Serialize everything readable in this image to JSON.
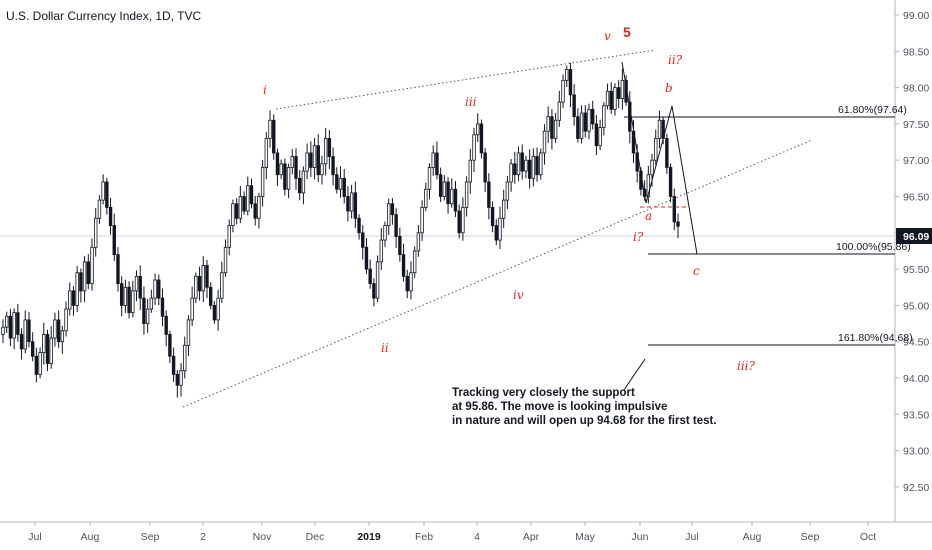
{
  "header": {
    "title": "U.S. Dollar Currency Index, 1D, TVC"
  },
  "colors": {
    "up": "#131722",
    "down": "#131722",
    "wave_label": "#e0262b",
    "price_tag_bg": "#131722",
    "level_line": "#131722"
  },
  "price_axis": {
    "ticks": [
      "99.00",
      "98.50",
      "98.00",
      "97.50",
      "97.00",
      "96.50",
      "96.00",
      "95.50",
      "95.00",
      "94.50",
      "94.00",
      "93.50",
      "93.00",
      "92.50"
    ],
    "current_price": "96.09"
  },
  "time_axis": {
    "labels": [
      {
        "text": "Jul",
        "bold": false
      },
      {
        "text": "Aug",
        "bold": false
      },
      {
        "text": "Sep",
        "bold": false
      },
      {
        "text": "2",
        "bold": false
      },
      {
        "text": "Nov",
        "bold": false
      },
      {
        "text": "Dec",
        "bold": false
      },
      {
        "text": "2019",
        "bold": true
      },
      {
        "text": "Feb",
        "bold": false
      },
      {
        "text": "4",
        "bold": false
      },
      {
        "text": "Apr",
        "bold": false
      },
      {
        "text": "May",
        "bold": false
      },
      {
        "text": "Jun",
        "bold": false
      },
      {
        "text": "Jul",
        "bold": false
      },
      {
        "text": "Aug",
        "bold": false
      },
      {
        "text": "Sep",
        "bold": false
      },
      {
        "text": "Oct",
        "bold": false
      }
    ]
  },
  "wave_labels": [
    "i",
    "ii",
    "iii",
    "iv",
    "v",
    "5",
    "ii?",
    "b",
    "a",
    "i?",
    "c",
    "iii?"
  ],
  "fib_levels": [
    {
      "label": "61.80%(97.64)",
      "price": 97.64
    },
    {
      "label": "100.00%(95.86)",
      "price": 95.86
    },
    {
      "label": "161.80%(94.68)",
      "price": 94.68
    }
  ],
  "annotation": {
    "lines": [
      "Tracking very closely the support",
      "at 95.86. The move is looking impulsive",
      "in nature and will open up 94.68 for the first test."
    ]
  },
  "chart_data": {
    "type": "candlestick",
    "title": "U.S. Dollar Currency Index, 1D, TVC",
    "ylim": [
      92.3,
      99.1
    ],
    "closes": [
      94.7,
      94.85,
      94.55,
      94.9,
      94.6,
      94.4,
      94.8,
      94.5,
      94.3,
      94.05,
      94.35,
      94.6,
      94.2,
      94.55,
      94.8,
      94.5,
      94.65,
      94.95,
      95.2,
      95.0,
      95.45,
      95.2,
      95.6,
      95.3,
      95.8,
      96.2,
      96.45,
      96.7,
      96.35,
      96.1,
      95.7,
      95.3,
      95.0,
      95.25,
      94.9,
      95.2,
      95.4,
      95.1,
      94.75,
      94.95,
      95.1,
      95.35,
      95.1,
      94.85,
      94.6,
      94.3,
      94.05,
      93.9,
      94.1,
      94.45,
      94.8,
      95.1,
      95.4,
      95.2,
      95.55,
      95.25,
      95.0,
      94.8,
      95.1,
      95.45,
      95.8,
      96.1,
      96.4,
      96.2,
      96.5,
      96.3,
      96.65,
      96.4,
      96.2,
      96.5,
      96.9,
      97.3,
      97.55,
      97.1,
      96.8,
      96.95,
      96.6,
      96.9,
      97.05,
      96.75,
      96.55,
      96.85,
      97.1,
      96.9,
      97.2,
      96.8,
      96.95,
      97.3,
      97.05,
      96.8,
      96.6,
      96.75,
      96.5,
      96.3,
      96.55,
      96.2,
      96.0,
      95.8,
      95.5,
      95.3,
      95.1,
      95.6,
      95.9,
      96.1,
      96.4,
      96.25,
      95.95,
      95.7,
      95.4,
      95.2,
      95.45,
      95.75,
      96.0,
      96.35,
      96.6,
      96.9,
      97.1,
      96.8,
      96.5,
      96.7,
      96.4,
      96.6,
      96.3,
      96.0,
      96.35,
      96.7,
      97.0,
      97.35,
      97.5,
      97.1,
      96.7,
      96.35,
      96.1,
      95.9,
      96.2,
      96.45,
      96.7,
      96.95,
      96.8,
      97.1,
      96.85,
      97.0,
      96.75,
      97.05,
      96.8,
      97.1,
      97.4,
      97.6,
      97.3,
      97.55,
      97.8,
      98.1,
      98.25,
      97.9,
      97.6,
      97.3,
      97.65,
      97.4,
      97.7,
      97.5,
      97.2,
      97.45,
      97.75,
      97.95,
      97.7,
      98.0,
      97.85,
      98.1,
      97.8,
      97.4,
      97.1,
      96.85,
      96.6,
      96.5,
      96.8,
      97.0,
      97.3,
      97.55,
      97.3,
      96.9,
      96.5,
      96.15,
      96.09
    ],
    "trendlines": [
      {
        "name": "upper",
        "from": "i",
        "to": "v"
      },
      {
        "name": "lower",
        "from": "ii low",
        "to": "extension"
      }
    ],
    "levels": [
      97.64,
      95.86,
      94.68
    ],
    "annotation_price_targets": [
      95.86,
      94.68
    ]
  }
}
